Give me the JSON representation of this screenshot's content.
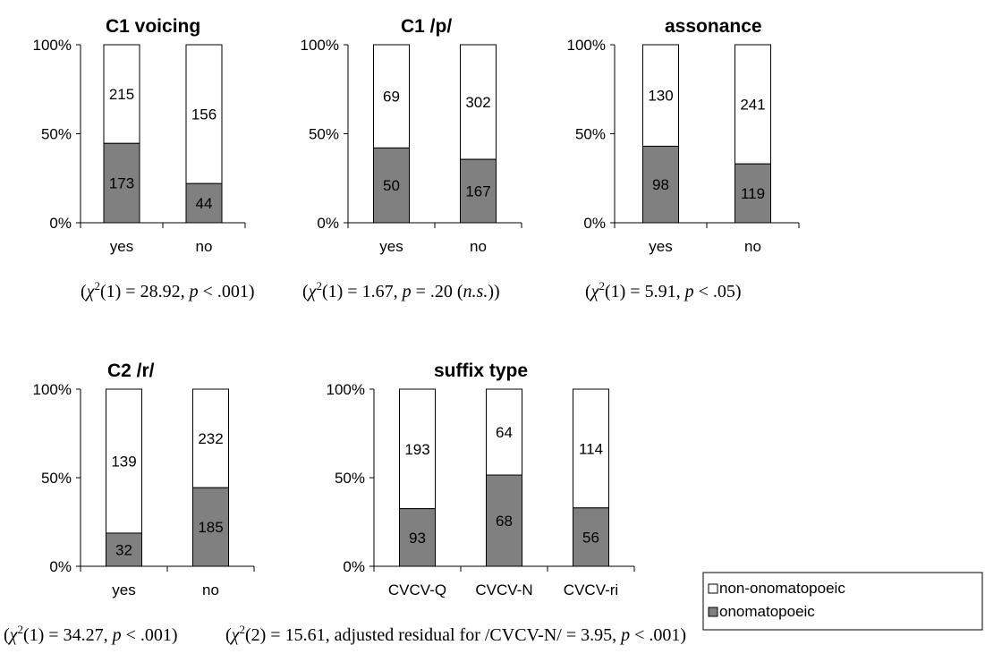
{
  "chart_data": [
    {
      "type": "bar",
      "stacked": "percent",
      "title": "C1 voicing",
      "categories": [
        "yes",
        "no"
      ],
      "series": [
        {
          "name": "onomatopoeic",
          "values": [
            173,
            44
          ]
        },
        {
          "name": "non-onomatopoeic",
          "values": [
            215,
            156
          ]
        }
      ],
      "yticks": [
        "0%",
        "50%",
        "100%"
      ],
      "ylim": [
        0,
        100
      ],
      "stat": "(χ2(1) = 28.92, p < .001)"
    },
    {
      "type": "bar",
      "stacked": "percent",
      "title": "C1 /p/",
      "categories": [
        "yes",
        "no"
      ],
      "series": [
        {
          "name": "onomatopoeic",
          "values": [
            50,
            167
          ]
        },
        {
          "name": "non-onomatopoeic",
          "values": [
            69,
            302
          ]
        }
      ],
      "yticks": [
        "0%",
        "50%",
        "100%"
      ],
      "ylim": [
        0,
        100
      ],
      "stat": "(χ2(1) = 1.67, p = .20 (n.s.))"
    },
    {
      "type": "bar",
      "stacked": "percent",
      "title": "assonance",
      "categories": [
        "yes",
        "no"
      ],
      "series": [
        {
          "name": "onomatopoeic",
          "values": [
            98,
            119
          ]
        },
        {
          "name": "non-onomatopoeic",
          "values": [
            130,
            241
          ]
        }
      ],
      "yticks": [
        "0%",
        "50%",
        "100%"
      ],
      "ylim": [
        0,
        100
      ],
      "stat": "(χ2(1) = 5.91, p < .05)"
    },
    {
      "type": "bar",
      "stacked": "percent",
      "title": "C2 /r/",
      "categories": [
        "yes",
        "no"
      ],
      "series": [
        {
          "name": "onomatopoeic",
          "values": [
            32,
            185
          ]
        },
        {
          "name": "non-onomatopoeic",
          "values": [
            139,
            232
          ]
        }
      ],
      "yticks": [
        "0%",
        "50%",
        "100%"
      ],
      "ylim": [
        0,
        100
      ],
      "stat": "(χ2(1) = 34.27, p < .001)"
    },
    {
      "type": "bar",
      "stacked": "percent",
      "title": "suffix type",
      "categories": [
        "CVCV-Q",
        "CVCV-N",
        "CVCV-ri"
      ],
      "series": [
        {
          "name": "onomatopoeic",
          "values": [
            93,
            68,
            56
          ]
        },
        {
          "name": "non-onomatopoeic",
          "values": [
            193,
            64,
            114
          ]
        }
      ],
      "yticks": [
        "0%",
        "50%",
        "100%"
      ],
      "ylim": [
        0,
        100
      ],
      "stat": "(χ2(2) = 15.61, adjusted residual for /CVCV-N/ = 3.95, p < .001)"
    }
  ],
  "legend": {
    "position": "bottom-right",
    "items": [
      {
        "label": "non-onomatopoeic",
        "color": "#ffffff"
      },
      {
        "label": "onomatopoeic",
        "color": "#808080"
      }
    ]
  },
  "colors": {
    "onomatopoeic": "#808080",
    "non_onomatopoeic": "#ffffff",
    "outline": "#000000"
  }
}
